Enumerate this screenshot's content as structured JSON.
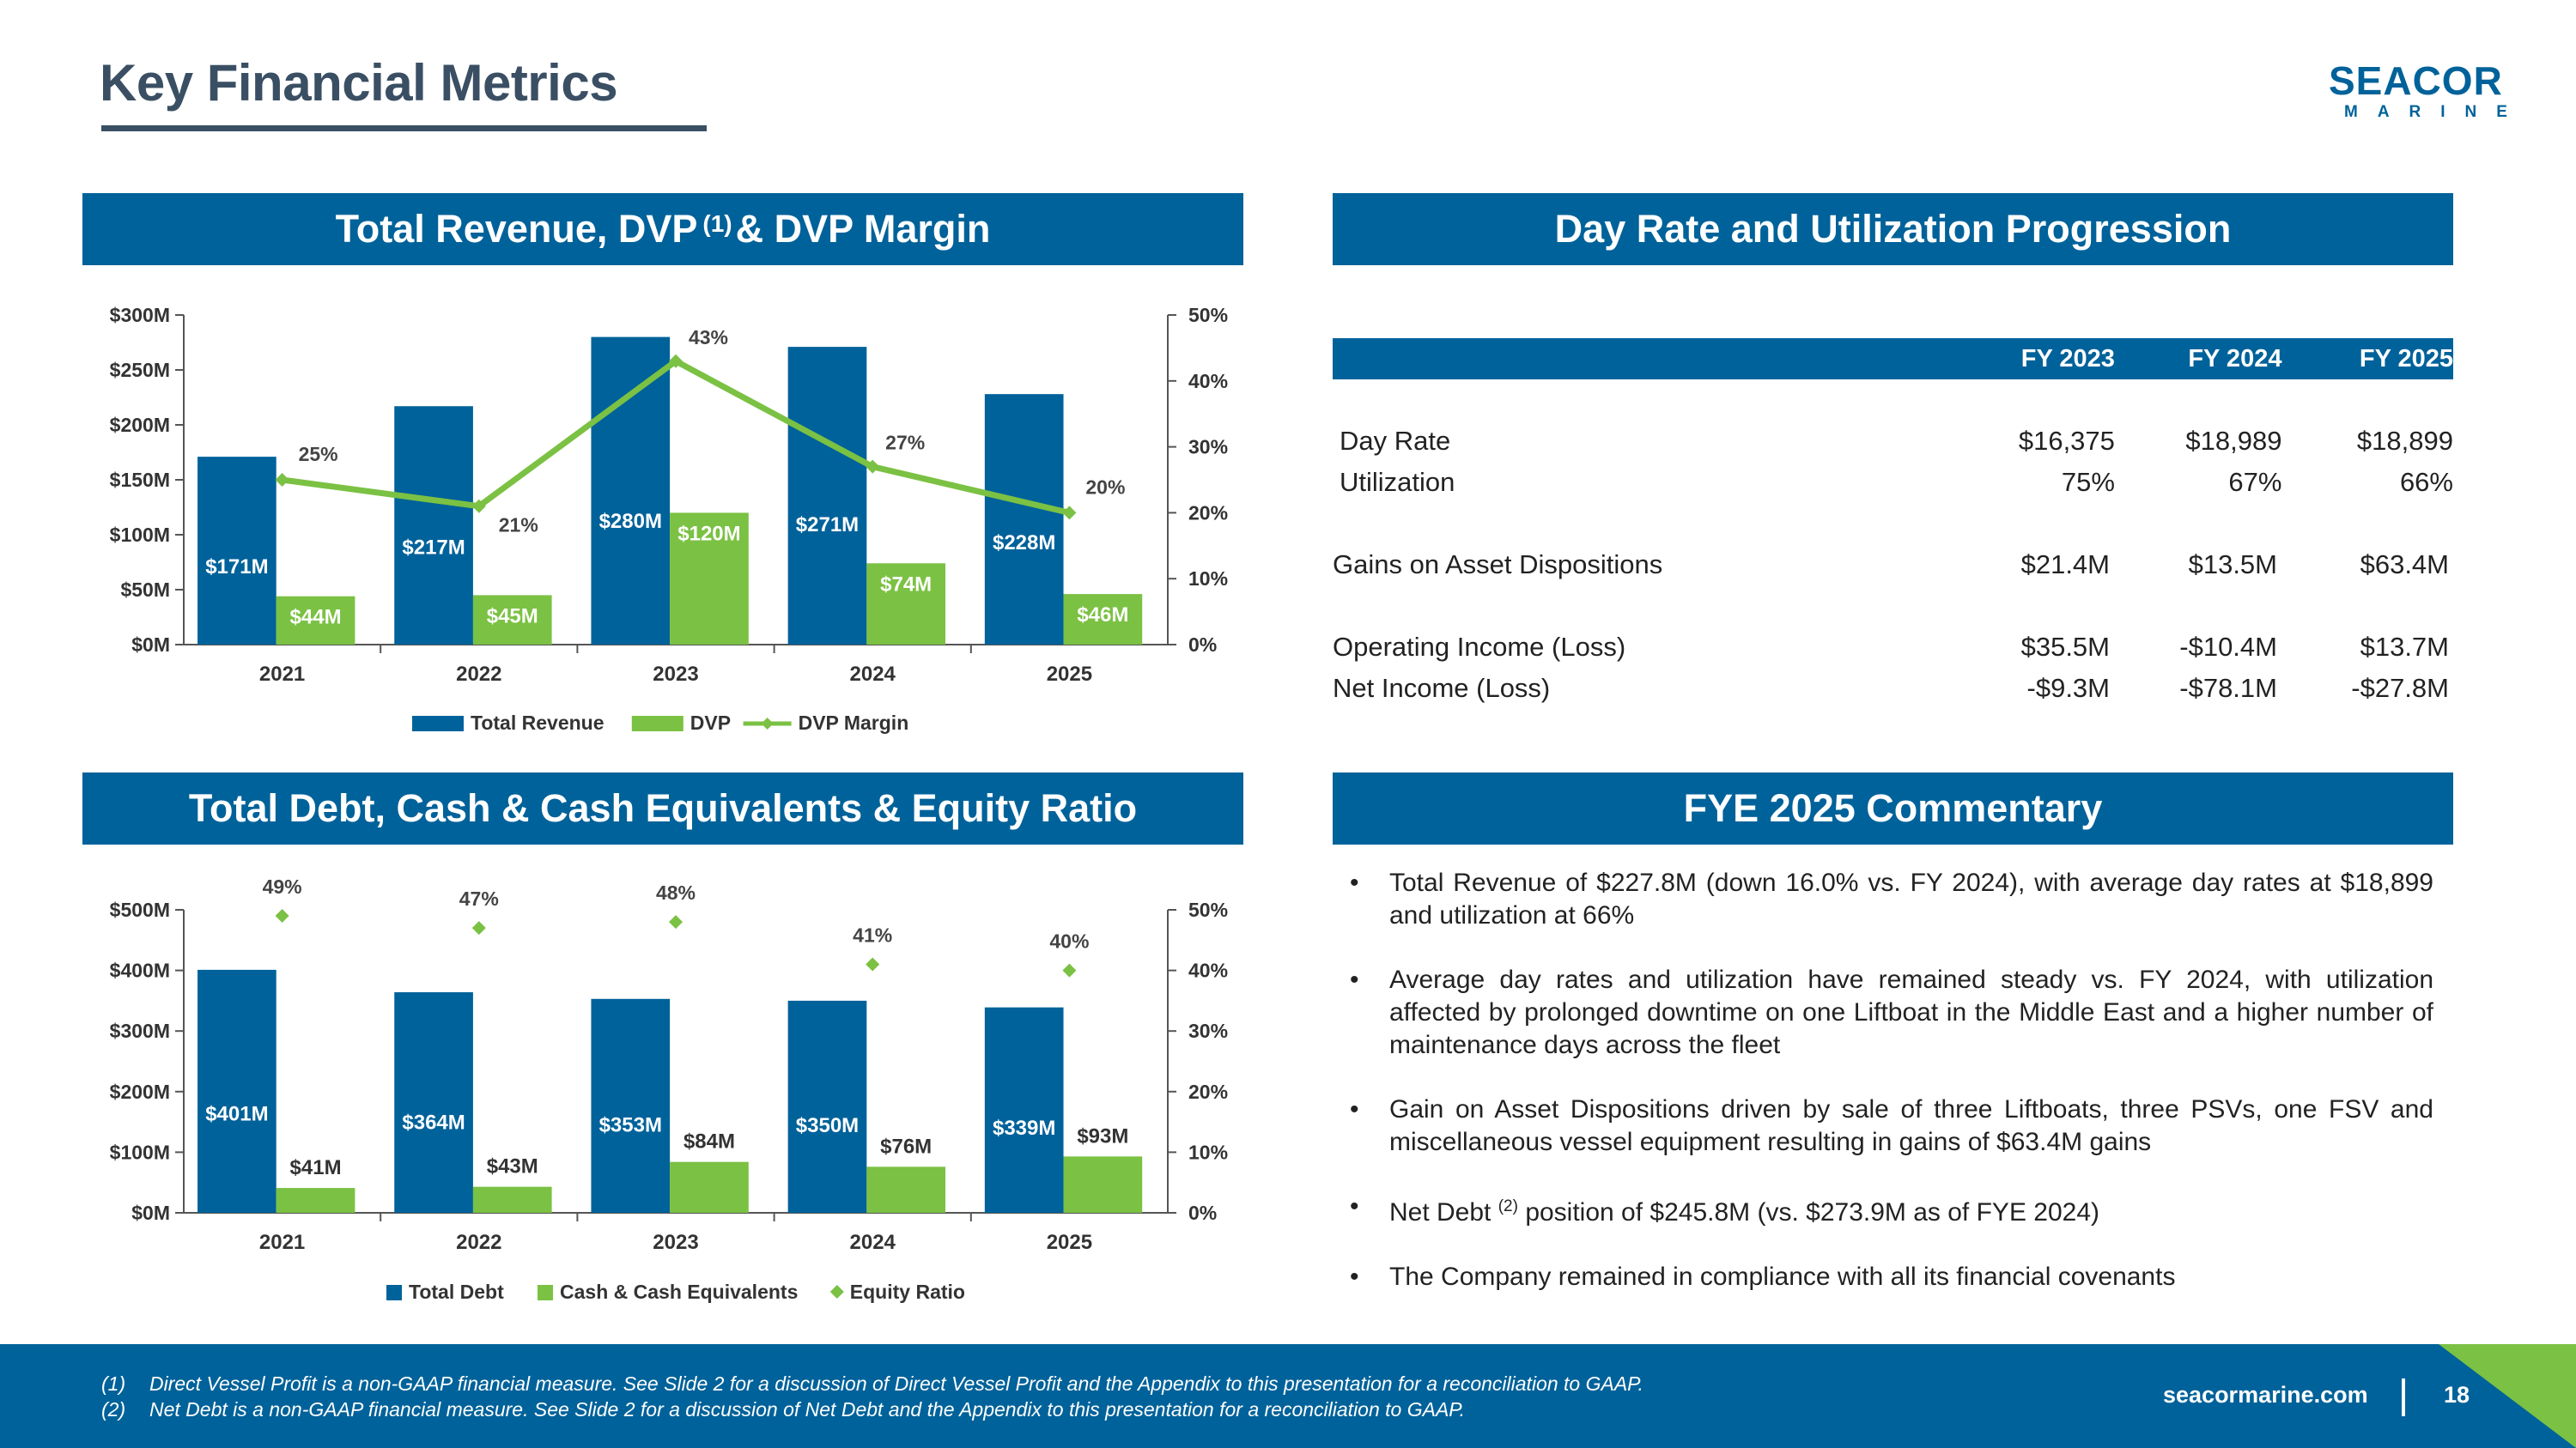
{
  "title": "Key Financial Metrics",
  "logo": {
    "name": "SEACOR",
    "sub": "MARINE"
  },
  "revenue_panel": {
    "title": "Total Revenue, DVP",
    "title_sup": "(1)",
    "title_suffix": "& DVP Margin"
  },
  "debt_panel": {
    "title": "Total Debt, Cash & Cash Equivalents & Equity Ratio"
  },
  "dayrate_panel": {
    "title": "Day Rate and Utilization Progression",
    "columns": [
      "FY 2023",
      "FY 2024",
      "FY 2025"
    ],
    "rows": [
      {
        "label": "Day Rate",
        "values": [
          "$16,375",
          "$18,989",
          "$18,899"
        ]
      },
      {
        "label": "Utilization",
        "values": [
          "75%",
          "67%",
          "66%"
        ]
      },
      {
        "label": "Gains on Asset Dispositions",
        "values": [
          "$21.4M",
          "$13.5M",
          "$63.4M"
        ]
      },
      {
        "label": "Operating Income (Loss)",
        "values": [
          "$35.5M",
          "-$10.4M",
          "$13.7M"
        ]
      },
      {
        "label": "Net Income (Loss)",
        "values": [
          "-$9.3M",
          "-$78.1M",
          "-$27.8M"
        ]
      }
    ]
  },
  "commentary": {
    "title": "FYE 2025 Commentary",
    "bullet": "•",
    "items": [
      "Total Revenue of $227.8M (down 16.0% vs. FY 2024), with average day rates at $18,899 and utilization at 66%",
      "Average day rates and utilization have remained steady vs. FY 2024, with utilization affected by prolonged downtime on one Liftboat in the Middle East and a higher number of maintenance days across the fleet",
      "Gain on Asset Dispositions driven by sale of three Liftboats, three PSVs, one FSV and miscellaneous vessel equipment resulting in gains of $63.4M gains"
    ],
    "item4_prefix": "Net Debt",
    "item4_sup": "(2)",
    "item4_suffix": "position of $245.8M (vs. $273.9M as of FYE 2024)",
    "item5": "The Company remained in compliance with all its financial covenants"
  },
  "chart_data": [
    {
      "type": "bar",
      "title": "Total Revenue, DVP (1) & DVP Margin",
      "categories": [
        "2021",
        "2022",
        "2023",
        "2024",
        "2025"
      ],
      "series": [
        {
          "name": "Total Revenue",
          "kind": "bar",
          "axis": "left",
          "values": [
            171,
            217,
            280,
            271,
            228
          ],
          "labels": [
            "$171M",
            "$217M",
            "$280M",
            "$271M",
            "$228M"
          ],
          "color": "#00629a"
        },
        {
          "name": "DVP",
          "kind": "bar",
          "axis": "left",
          "values": [
            44,
            45,
            120,
            74,
            46
          ],
          "labels": [
            "$44M",
            "$45M",
            "$120M",
            "$74M",
            "$46M"
          ],
          "color": "#7bc143"
        },
        {
          "name": "DVP Margin",
          "kind": "line",
          "axis": "right",
          "values": [
            25,
            21,
            43,
            27,
            20
          ],
          "labels": [
            "25%",
            "21%",
            "43%",
            "27%",
            "20%"
          ],
          "color": "#7bc143"
        }
      ],
      "ylim": [
        0,
        300
      ],
      "y_ticks": [
        "$0M",
        "$50M",
        "$100M",
        "$150M",
        "$200M",
        "$250M",
        "$300M"
      ],
      "y2lim": [
        0,
        50
      ],
      "y2_ticks": [
        "0%",
        "10%",
        "20%",
        "30%",
        "40%",
        "50%"
      ],
      "legend_position": "bottom"
    },
    {
      "type": "bar",
      "title": "Total Debt, Cash & Cash Equivalents & Equity Ratio",
      "categories": [
        "2021",
        "2022",
        "2023",
        "2024",
        "2025"
      ],
      "series": [
        {
          "name": "Total Debt",
          "kind": "bar",
          "axis": "left",
          "values": [
            401,
            364,
            353,
            350,
            339
          ],
          "labels": [
            "$401M",
            "$364M",
            "$353M",
            "$350M",
            "$339M"
          ],
          "color": "#00629a"
        },
        {
          "name": "Cash & Cash Equivalents",
          "kind": "bar",
          "axis": "left",
          "values": [
            41,
            43,
            84,
            76,
            93
          ],
          "labels": [
            "$41M",
            "$43M",
            "$84M",
            "$76M",
            "$93M"
          ],
          "color": "#7bc143"
        },
        {
          "name": "Equity Ratio",
          "kind": "marker",
          "axis": "right",
          "values": [
            49,
            47,
            48,
            41,
            40
          ],
          "labels": [
            "49%",
            "47%",
            "48%",
            "41%",
            "40%"
          ],
          "color": "#7bc143"
        }
      ],
      "ylim": [
        0,
        500
      ],
      "y_ticks": [
        "$0M",
        "$100M",
        "$200M",
        "$300M",
        "$400M",
        "$500M"
      ],
      "y2lim": [
        0,
        50
      ],
      "y2_ticks": [
        "0%",
        "10%",
        "20%",
        "30%",
        "40%",
        "50%"
      ],
      "legend_position": "bottom"
    }
  ],
  "footer": {
    "footnotes": [
      {
        "num": "(1)",
        "text": "Direct Vessel Profit is a non-GAAP financial measure. See Slide 2 for a discussion of Direct Vessel Profit and the Appendix to this presentation for a reconciliation to GAAP."
      },
      {
        "num": "(2)",
        "text": "Net Debt is a non-GAAP financial measure. See Slide 2 for a discussion of Net Debt and the Appendix to this presentation for a reconciliation to GAAP."
      }
    ],
    "url": "seacormarine.com",
    "page": "18"
  }
}
